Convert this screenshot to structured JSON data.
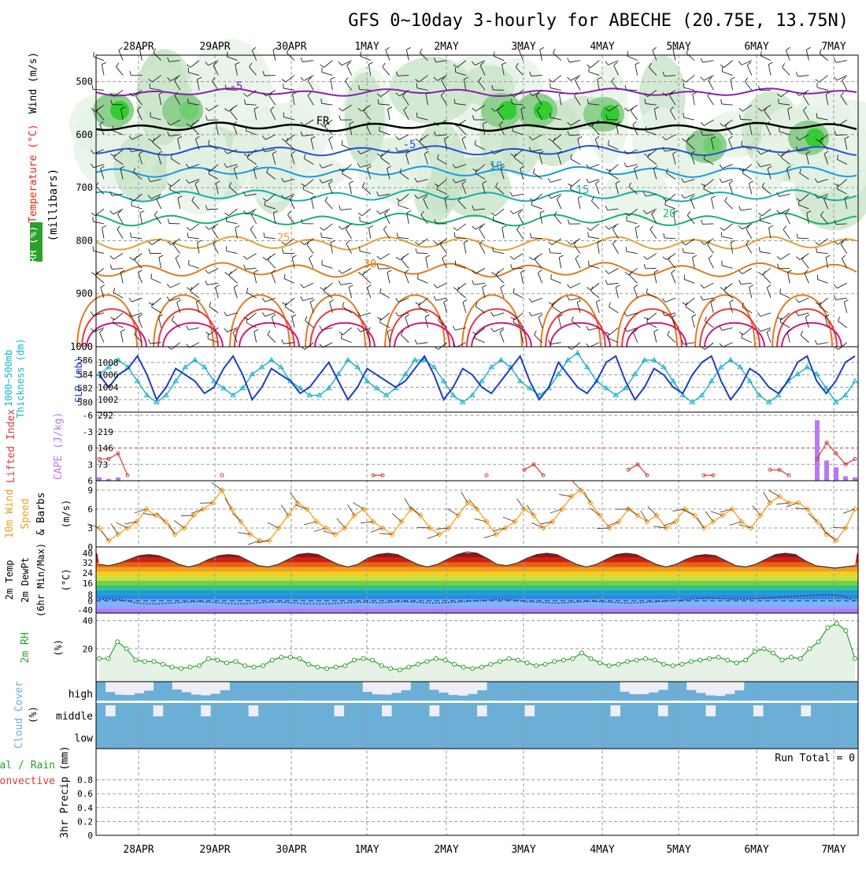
{
  "title": "GFS 0~10day 3-hourly for ABECHE (20.75E, 13.75N)",
  "days": [
    "28APR",
    "29APR",
    "30APR",
    "1MAY",
    "2MAY",
    "3MAY",
    "4MAY",
    "5MAY",
    "6MAY",
    "7MAY"
  ],
  "colors": {
    "temp": "#e2261b",
    "dew": "#6a1f8f",
    "rh": "#2ca02c",
    "slp": "#1f3fbf",
    "thick": "#19b3c6",
    "cape": "#b979f2",
    "li": "#d43a3a",
    "wind": "#f0a020",
    "cloud": "#6baed6",
    "pale": "#eeeef7"
  },
  "panels": {
    "upper": {
      "label_wind": "Wind (m/s)",
      "label_temp": "Temperature (°C)",
      "label_rh": "RH (%)",
      "label_unit": "(millibars)",
      "pressure_ticks": [
        "500",
        "600",
        "700",
        "800",
        "900",
        "1000"
      ],
      "contours": [
        {
          "label": "-5",
          "p": 520,
          "color": "#8a1fb3"
        },
        {
          "label": "FR",
          "p": 585,
          "color": "#000000"
        },
        {
          "label": "-5",
          "p": 630,
          "color": "#2254d6"
        },
        {
          "label": "10",
          "p": 670,
          "color": "#1a9be0"
        },
        {
          "label": "15",
          "p": 715,
          "color": "#18b0a8"
        },
        {
          "label": "20",
          "p": 760,
          "color": "#19b36a"
        },
        {
          "label": "25",
          "p": 805,
          "color": "#e0a23a"
        },
        {
          "label": "30",
          "p": 855,
          "color": "#e07b20"
        }
      ]
    },
    "slp": {
      "label_thick": "1000~500mb Thickness (dm)",
      "label_slp": "SLP (mb)",
      "left_ticks": [
        "586",
        "584",
        "582",
        "580"
      ],
      "right_ticks": [
        "1008",
        "1006",
        "1004",
        "1002"
      ]
    },
    "cape": {
      "label_li": "Lifted Index",
      "label_cape": "CAPE (J/kg)",
      "left_ticks": [
        "-6",
        "-3",
        "0",
        "3",
        "6"
      ],
      "right_ticks": [
        "292",
        "219",
        "146",
        "73"
      ]
    },
    "wind": {
      "label": "10m Wind Speed & Barbs",
      "unit": "(m/s)",
      "ticks": [
        "9",
        "6",
        "3",
        "0"
      ]
    },
    "temp": {
      "label": "2m Temp 2m DewPt (6hr Min/Max)",
      "unit": "(°C)",
      "ticks": [
        "40",
        "32",
        "24",
        "16",
        "8",
        "0",
        "-40"
      ]
    },
    "rh": {
      "label": "2m RH",
      "unit": "(%)",
      "ticks": [
        "40",
        "20"
      ]
    },
    "cloud": {
      "label": "Cloud Cover",
      "unit": "(%)",
      "levels": [
        "high",
        "middle",
        "low"
      ]
    },
    "precip": {
      "label_total": "Total / Rain",
      "label_conv": "Convective",
      "label_axis": "3hr Precip (mm)",
      "ticks": [
        "0.8",
        "0.6",
        "0.4",
        "0.2",
        "0"
      ],
      "run_total": "Run Total = 0"
    }
  },
  "chart_data": [
    {
      "type": "heatmap",
      "title": "GFS 0~10day 3-hourly for ABECHE (20.75E, 13.75N)",
      "ylabel": "(millibars)",
      "ylim": [
        1000,
        450
      ],
      "legend": [
        "Wind (m/s)",
        "Temperature (°C)",
        "RH (%)"
      ]
    },
    {
      "type": "line",
      "ylabel": "1000~500mb Thickness (dm) / SLP (mb)",
      "series": [
        {
          "name": "SLP (mb)",
          "values": [
            1006,
            1004,
            1006,
            1007,
            1009,
            1006,
            1002,
            1004,
            1007,
            1006,
            1005,
            1003,
            1004,
            1007,
            1009,
            1006,
            1002,
            1004,
            1007,
            1006,
            1005,
            1003,
            1004,
            1006,
            1008,
            1005,
            1002,
            1004,
            1007,
            1006,
            1005,
            1004,
            1005,
            1007,
            1009,
            1006,
            1002,
            1004,
            1007,
            1006,
            1004,
            1003,
            1005,
            1007,
            1009,
            1005,
            1002,
            1004,
            1008,
            1006,
            1004,
            1003,
            1005,
            1008,
            1009,
            1005,
            1002,
            1004,
            1007,
            1006,
            1004,
            1003,
            1006,
            1008,
            1009,
            1005,
            1002,
            1004,
            1007,
            1006,
            1004,
            1003,
            1005,
            1008,
            1009,
            1005,
            1003,
            1005,
            1008,
            1009
          ]
        },
        {
          "name": "1000~500mb Thickness (dm)",
          "values": [
            584,
            585,
            586,
            585,
            583,
            581,
            580,
            581,
            583,
            585,
            586,
            585,
            583,
            582,
            581,
            582,
            584,
            585,
            586,
            585,
            583,
            582,
            581,
            581,
            582,
            584,
            586,
            585,
            583,
            582,
            581,
            582,
            584,
            586,
            586,
            585,
            583,
            581,
            580,
            581,
            583,
            585,
            586,
            585,
            583,
            582,
            581,
            582,
            584,
            586,
            587,
            585,
            583,
            582,
            581,
            582,
            584,
            586,
            586,
            585,
            583,
            581,
            580,
            581,
            583,
            585,
            586,
            585,
            583,
            581,
            580,
            581,
            583,
            584,
            585,
            584,
            582,
            580,
            581,
            583
          ]
        }
      ]
    },
    {
      "type": "line",
      "ylabel": "Lifted Index / CAPE (J/kg)",
      "series": [
        {
          "name": "Lifted Index",
          "values": [
            2,
            2,
            1,
            5,
            6,
            6,
            6,
            6,
            6,
            6,
            6,
            6,
            6,
            5,
            6,
            6,
            6,
            6,
            6,
            6,
            6,
            6,
            6,
            6,
            6,
            6,
            6,
            6,
            6,
            5,
            5,
            6,
            6,
            6,
            6,
            6,
            6,
            6,
            6,
            6,
            6,
            5,
            6,
            6,
            6,
            4,
            3,
            5,
            6,
            6,
            6,
            6,
            6,
            6,
            6,
            6,
            4,
            3,
            5,
            6,
            6,
            6,
            6,
            6,
            5,
            5,
            6,
            6,
            6,
            6,
            6,
            4,
            4,
            5,
            6,
            6,
            2,
            -1,
            1,
            3,
            2
          ]
        },
        {
          "name": "CAPE (J/kg)",
          "values": [
            15,
            8,
            15,
            0,
            0,
            0,
            0,
            0,
            0,
            0,
            0,
            0,
            0,
            0,
            0,
            0,
            0,
            0,
            0,
            0,
            0,
            0,
            0,
            0,
            0,
            0,
            0,
            0,
            0,
            0,
            0,
            0,
            0,
            0,
            0,
            0,
            0,
            0,
            0,
            0,
            0,
            0,
            0,
            0,
            0,
            0,
            0,
            0,
            0,
            0,
            0,
            0,
            0,
            0,
            0,
            0,
            0,
            0,
            0,
            0,
            0,
            0,
            0,
            0,
            0,
            0,
            0,
            0,
            0,
            0,
            0,
            0,
            0,
            0,
            0,
            0,
            270,
            90,
            60,
            20,
            15
          ]
        }
      ]
    },
    {
      "type": "line",
      "ylabel": "(m/s)",
      "series": [
        {
          "name": "10m Wind Speed",
          "values": [
            3,
            1,
            2,
            3,
            4,
            6,
            5,
            4,
            2,
            3,
            5,
            6,
            7,
            9,
            6,
            4,
            2,
            1,
            1,
            3,
            5,
            7,
            6,
            4,
            3,
            2,
            3,
            5,
            6,
            4,
            3,
            2,
            4,
            6,
            5,
            3,
            2,
            3,
            5,
            7,
            6,
            4,
            2,
            3,
            4,
            6,
            5,
            3,
            4,
            6,
            8,
            9,
            7,
            5,
            3,
            4,
            6,
            5,
            4,
            5,
            3,
            4,
            6,
            5,
            3,
            4,
            5,
            6,
            4,
            3,
            5,
            7,
            8,
            7,
            7,
            6,
            4,
            2,
            1,
            3,
            6
          ]
        }
      ]
    },
    {
      "type": "area",
      "ylabel": "(°C)",
      "series": [
        {
          "name": "2m Temp",
          "values": [
            31,
            30,
            32,
            35,
            38,
            39,
            38,
            35,
            31,
            29,
            31,
            35,
            38,
            39,
            38,
            34,
            30,
            29,
            31,
            35,
            39,
            40,
            39,
            35,
            31,
            29,
            31,
            36,
            39,
            40,
            39,
            35,
            31,
            29,
            31,
            35,
            39,
            41,
            40,
            36,
            31,
            30,
            32,
            36,
            39,
            40,
            39,
            35,
            31,
            29,
            31,
            35,
            39,
            40,
            39,
            35,
            31,
            29,
            31,
            35,
            38,
            39,
            38,
            34,
            30,
            29,
            31,
            35,
            39,
            40,
            39,
            34,
            30,
            29,
            28,
            29,
            30
          ]
        },
        {
          "name": "2m DewPt",
          "values": [
            2,
            2,
            1,
            -3,
            -4,
            -4,
            -3,
            -2,
            -1,
            -2,
            -3,
            -4,
            -4,
            -3,
            -2,
            -2,
            -3,
            -4,
            -4,
            -4,
            -3,
            -2,
            -2,
            -3,
            -2,
            -1,
            -2,
            -3,
            -3,
            -2,
            -1,
            0,
            1,
            2,
            1,
            -1,
            -2,
            -3,
            -3,
            -2,
            -1,
            -1,
            -2,
            -3,
            -3,
            -2,
            -1,
            0,
            1,
            3,
            4,
            3,
            2,
            2,
            3,
            4,
            5,
            6,
            7,
            8,
            8,
            7,
            -1
          ]
        }
      ]
    },
    {
      "type": "area",
      "ylabel": "(%)",
      "series": [
        {
          "name": "2m RH",
          "values": [
            13,
            13,
            25,
            20,
            12,
            11,
            11,
            9,
            7,
            6,
            7,
            8,
            13,
            12,
            10,
            11,
            8,
            7,
            8,
            12,
            14,
            14,
            13,
            9,
            7,
            6,
            7,
            8,
            12,
            13,
            12,
            8,
            6,
            5,
            7,
            9,
            11,
            13,
            12,
            9,
            7,
            6,
            7,
            9,
            11,
            13,
            12,
            10,
            8,
            9,
            11,
            12,
            13,
            17,
            13,
            10,
            8,
            9,
            11,
            12,
            13,
            12,
            9,
            8,
            9,
            11,
            12,
            13,
            14,
            12,
            10,
            12,
            18,
            20,
            17,
            12,
            14,
            13,
            20,
            25,
            35,
            38,
            33,
            13
          ]
        }
      ]
    },
    {
      "type": "heatmap",
      "ylabel": "(%)",
      "categories": [
        "high",
        "middle",
        "low"
      ]
    },
    {
      "type": "bar",
      "ylabel": "3hr Precip (mm)",
      "ylim": [
        0,
        1
      ],
      "values": []
    }
  ]
}
